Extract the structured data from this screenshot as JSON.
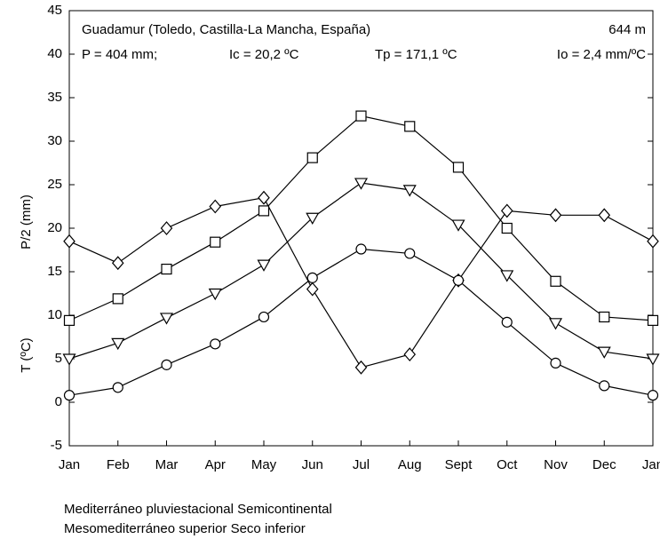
{
  "chart_data": {
    "type": "line",
    "header": [
      "Guadamur (Toledo, Castilla-La Mancha, España)",
      "644 m",
      "P = 404 mm;",
      "Ic = 20,2 ºC",
      "Tp = 171,1 ºC",
      "Io = 2,4 mm/ºC"
    ],
    "ylabels": [
      "T (ºC)",
      "P/2 (mm)"
    ],
    "footer": [
      "Mediterráneo pluviestacional Semicontinental",
      "Mesomediterráneo superior Seco inferior"
    ],
    "categories": [
      "Jan",
      "Feb",
      "Mar",
      "Apr",
      "May",
      "Jun",
      "Jul",
      "Aug",
      "Sept",
      "Oct",
      "Nov",
      "Dec",
      "Jan"
    ],
    "series": [
      {
        "marker": "diamond",
        "color": "#000000",
        "values": [
          18.5,
          16,
          20,
          22.5,
          23.5,
          13,
          4,
          5.5,
          14,
          22,
          21.5,
          21.5,
          18.5
        ]
      },
      {
        "marker": "square",
        "color": "#000000",
        "values": [
          9.4,
          11.9,
          15.3,
          18.4,
          22,
          28.1,
          32.9,
          31.7,
          27,
          20,
          13.9,
          9.8,
          9.4
        ]
      },
      {
        "marker": "triangle-down",
        "color": "#000000",
        "values": [
          5,
          6.8,
          9.7,
          12.5,
          15.8,
          21.2,
          25.2,
          24.4,
          20.4,
          14.6,
          9.1,
          5.8,
          5
        ]
      },
      {
        "marker": "circle",
        "color": "#000000",
        "values": [
          0.8,
          1.7,
          4.3,
          6.7,
          9.8,
          14.3,
          17.6,
          17.1,
          14,
          9.2,
          4.5,
          1.9,
          0.8
        ]
      }
    ],
    "ylim": [
      -5,
      45
    ],
    "yticks": [
      -5,
      0,
      5,
      10,
      15,
      20,
      25,
      30,
      35,
      40,
      45
    ],
    "grid": false
  }
}
